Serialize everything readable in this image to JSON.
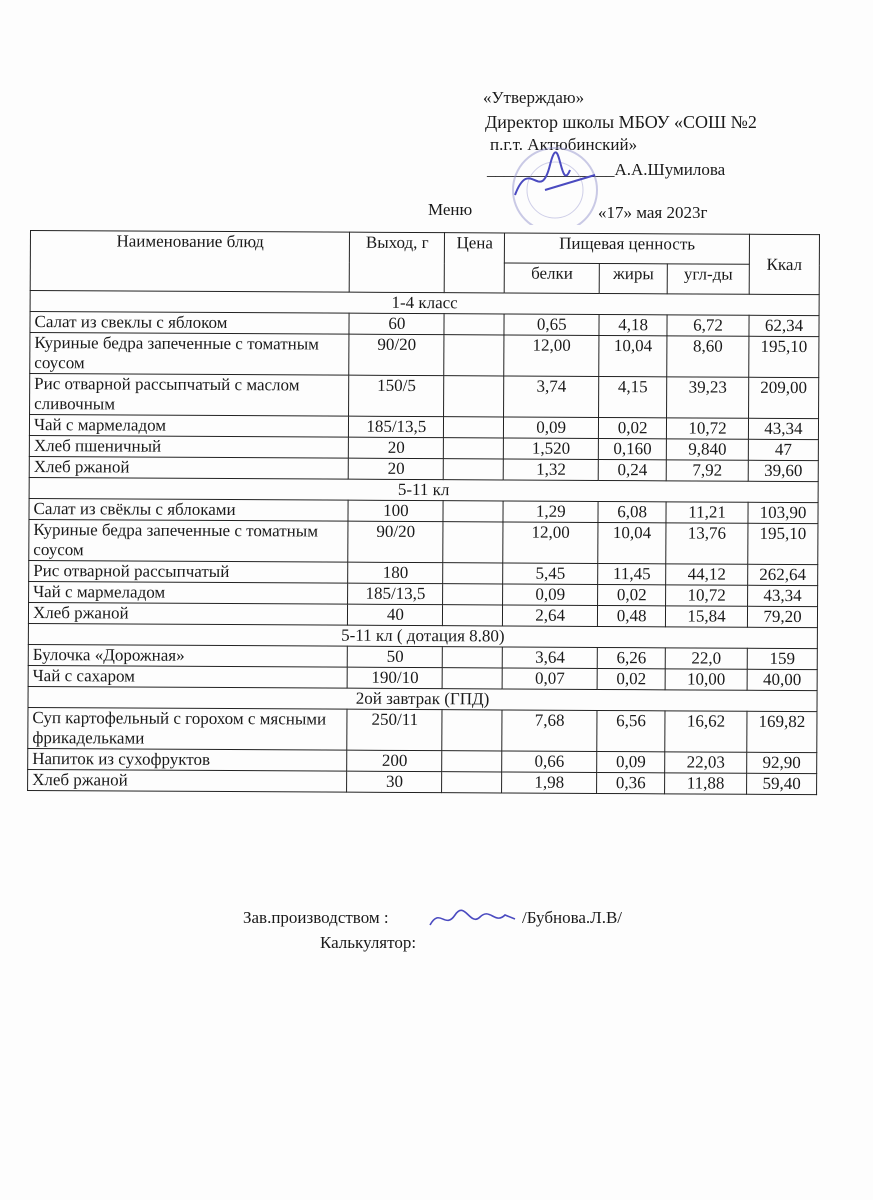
{
  "approval": {
    "title": "«Утверждаю»",
    "line1": "Директор школы МБОУ «СОШ №2",
    "line2": "п.г.т. Актюбинский»",
    "signature_line": "_______________А.А.Шумилова"
  },
  "menu_label": "Меню",
  "date": "«17» мая  2023г",
  "table": {
    "headers": {
      "name": "Наименование блюд",
      "yield": "Выход, г",
      "price": "Цена",
      "nutrition": "Пищевая ценность",
      "kcal": "Ккал",
      "protein": "белки",
      "fat": "жиры",
      "carbs": "угл-ды"
    },
    "sections": [
      {
        "title": "1-4 класс",
        "rows": [
          {
            "name": "Салат из свеклы с яблоком",
            "yield": "60",
            "price": "",
            "protein": "0,65",
            "fat": "4,18",
            "carbs": "6,72",
            "kcal": "62,34"
          },
          {
            "name": "Куриные бедра запеченные с томатным соусом",
            "yield": "90/20",
            "price": "",
            "protein": "12,00",
            "fat": "10,04",
            "carbs": "8,60",
            "kcal": "195,10"
          },
          {
            "name": "Рис отварной рассыпчатый с маслом сливочным",
            "yield": "150/5",
            "price": "",
            "protein": "3,74",
            "fat": "4,15",
            "carbs": "39,23",
            "kcal": "209,00"
          },
          {
            "name": "Чай с мармеладом",
            "yield": "185/13,5",
            "price": "",
            "protein": "0,09",
            "fat": "0,02",
            "carbs": "10,72",
            "kcal": "43,34"
          },
          {
            "name": "Хлеб пшеничный",
            "yield": "20",
            "price": "",
            "protein": "1,520",
            "fat": "0,160",
            "carbs": "9,840",
            "kcal": "47"
          },
          {
            "name": "Хлеб ржаной",
            "yield": "20",
            "price": "",
            "protein": "1,32",
            "fat": "0,24",
            "carbs": "7,92",
            "kcal": "39,60"
          }
        ]
      },
      {
        "title": "5-11 кл",
        "rows": [
          {
            "name": "Салат из свёклы с яблоками",
            "yield": "100",
            "price": "",
            "protein": "1,29",
            "fat": "6,08",
            "carbs": "11,21",
            "kcal": "103,90"
          },
          {
            "name": "Куриные бедра запеченные с томатным соусом",
            "yield": "90/20",
            "price": "",
            "protein": "12,00",
            "fat": "10,04",
            "carbs": "13,76",
            "kcal": "195,10"
          },
          {
            "name": "Рис отварной рассыпчатый",
            "yield": "180",
            "price": "",
            "protein": "5,45",
            "fat": "11,45",
            "carbs": "44,12",
            "kcal": "262,64"
          },
          {
            "name": "Чай с мармеладом",
            "yield": "185/13,5",
            "price": "",
            "protein": "0,09",
            "fat": "0,02",
            "carbs": "10,72",
            "kcal": "43,34"
          },
          {
            "name": "Хлеб ржаной",
            "yield": "40",
            "price": "",
            "protein": "2,64",
            "fat": "0,48",
            "carbs": "15,84",
            "kcal": "79,20"
          }
        ]
      },
      {
        "title": "5-11 кл ( дотация 8.80)",
        "rows": [
          {
            "name": "Булочка «Дорожная»",
            "yield": "50",
            "price": "",
            "protein": "3,64",
            "fat": "6,26",
            "carbs": "22,0",
            "kcal": "159"
          },
          {
            "name": "Чай с сахаром",
            "yield": "190/10",
            "price": "",
            "protein": "0,07",
            "fat": "0,02",
            "carbs": "10,00",
            "kcal": "40,00"
          }
        ]
      },
      {
        "title": "2ой завтрак (ГПД)",
        "rows": [
          {
            "name": "Суп картофельный с горохом с мясными фрикадельками",
            "yield": "250/11",
            "price": "",
            "protein": "7,68",
            "fat": "6,56",
            "carbs": "16,62",
            "kcal": "169,82"
          },
          {
            "name": "Напиток из сухофруктов",
            "yield": "200",
            "price": "",
            "protein": "0,66",
            "fat": "0,09",
            "carbs": "22,03",
            "kcal": "92,90"
          },
          {
            "name": "Хлеб ржаной",
            "yield": "30",
            "price": "",
            "protein": "1,98",
            "fat": "0,36",
            "carbs": "11,88",
            "kcal": "59,40"
          }
        ]
      }
    ]
  },
  "footer": {
    "production_label": "Зав.производством :",
    "production_name": "/Бубнова.Л.В/",
    "calculator_label": "Калькулятор:"
  },
  "colors": {
    "stamp": "#6f6fb8",
    "signature": "#4a4ac0"
  }
}
